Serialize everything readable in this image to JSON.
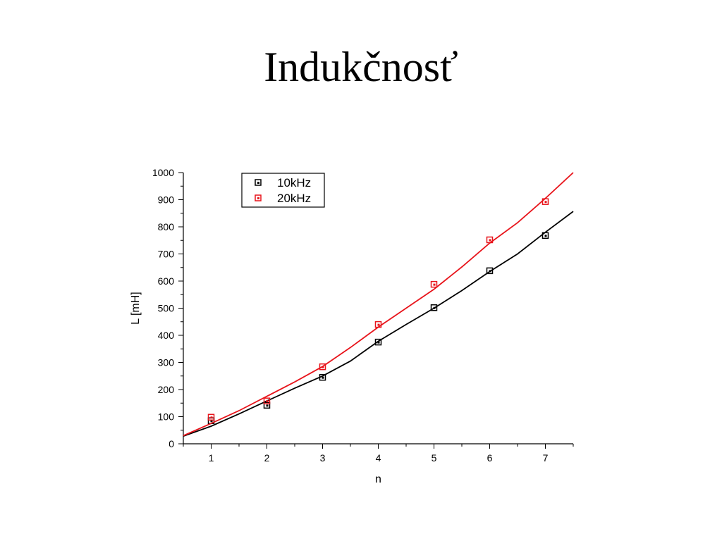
{
  "slide": {
    "title": "Indukčnosť"
  },
  "chart_data": {
    "type": "scatter",
    "title": "",
    "xlabel": "n",
    "ylabel": "L [mH]",
    "xlim": [
      0.5,
      7.5
    ],
    "ylim": [
      0,
      1000
    ],
    "xticks": [
      1,
      2,
      3,
      4,
      5,
      6,
      7
    ],
    "yticks": [
      0,
      100,
      200,
      300,
      400,
      500,
      600,
      700,
      800,
      900,
      1000
    ],
    "grid": false,
    "legend_position": "top-left",
    "series": [
      {
        "name": "10kHz",
        "color": "#000000",
        "marker": "square",
        "x": [
          1,
          2,
          3,
          4,
          5,
          6,
          7
        ],
        "y": [
          85,
          142,
          245,
          375,
          502,
          638,
          768
        ],
        "fit_x": [
          0.5,
          1,
          1.5,
          2,
          2.5,
          3,
          3.5,
          4,
          4.5,
          5,
          5.5,
          6,
          6.5,
          7,
          7.5
        ],
        "fit_y": [
          28,
          65,
          110,
          158,
          205,
          250,
          305,
          378,
          440,
          500,
          565,
          635,
          700,
          780,
          857
        ]
      },
      {
        "name": "20kHz",
        "color": "#e8141b",
        "marker": "square",
        "x": [
          1,
          2,
          3,
          4,
          5,
          6,
          7
        ],
        "y": [
          98,
          158,
          284,
          440,
          588,
          752,
          893
        ],
        "fit_x": [
          0.5,
          1,
          1.5,
          2,
          2.5,
          3,
          3.5,
          4,
          4.5,
          5,
          5.5,
          6,
          6.5,
          7,
          7.5
        ],
        "fit_y": [
          30,
          75,
          122,
          175,
          228,
          285,
          355,
          430,
          500,
          570,
          652,
          740,
          815,
          905,
          1000
        ]
      }
    ]
  }
}
